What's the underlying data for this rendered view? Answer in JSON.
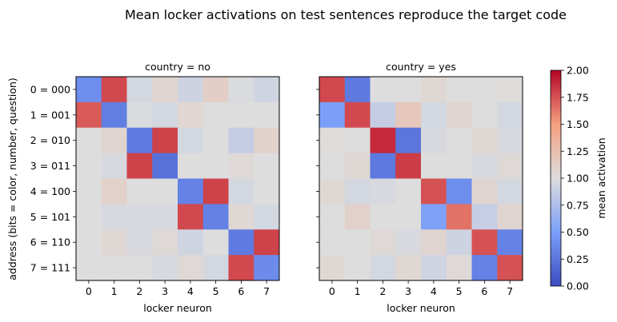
{
  "title": "Mean locker activations on test sentences reproduce the target code",
  "chart_data": {
    "type": "heatmap",
    "colormap": "coolwarm",
    "vmin": 0,
    "vmax": 2,
    "colorbar_label": "mean activation",
    "colorbar_ticks": [
      "0.00",
      "0.25",
      "0.50",
      "0.75",
      "1.00",
      "1.25",
      "1.50",
      "1.75",
      "2.00"
    ],
    "xlabel": "locker neuron",
    "ylabel": "address  (bits = color, number, question)",
    "x_ticks": [
      "0",
      "1",
      "2",
      "3",
      "4",
      "5",
      "6",
      "7"
    ],
    "y_ticks": [
      "0 = 000",
      "1 = 001",
      "2 = 010",
      "3 = 011",
      "4 = 100",
      "5 = 101",
      "6 = 110",
      "7 = 111"
    ],
    "panels": [
      {
        "title": "country = no",
        "values": [
          [
            0.4,
            1.78,
            0.95,
            1.07,
            0.92,
            1.12,
            0.98,
            0.93
          ],
          [
            1.72,
            0.3,
            0.98,
            0.95,
            1.06,
            1.0,
            1.0,
            1.0
          ],
          [
            1.0,
            1.07,
            0.28,
            1.8,
            0.95,
            1.0,
            0.87,
            1.09
          ],
          [
            1.0,
            0.97,
            1.8,
            0.22,
            1.0,
            1.0,
            1.03,
            1.0
          ],
          [
            1.0,
            1.1,
            1.0,
            1.0,
            0.33,
            1.8,
            0.95,
            1.0
          ],
          [
            1.0,
            0.97,
            0.97,
            0.97,
            1.78,
            0.32,
            1.05,
            0.95
          ],
          [
            1.0,
            1.05,
            0.97,
            1.03,
            0.93,
            1.0,
            0.28,
            1.8
          ],
          [
            1.0,
            1.0,
            1.0,
            0.97,
            1.03,
            0.95,
            1.78,
            0.38
          ]
        ]
      },
      {
        "title": "country = yes",
        "values": [
          [
            1.78,
            0.27,
            1.0,
            1.0,
            1.05,
            1.0,
            1.0,
            1.02
          ],
          [
            0.5,
            1.78,
            0.87,
            1.18,
            0.95,
            1.07,
            1.0,
            0.95
          ],
          [
            1.02,
            1.0,
            1.88,
            0.25,
            0.97,
            1.0,
            1.05,
            0.97
          ],
          [
            1.0,
            1.05,
            0.27,
            1.82,
            1.0,
            1.0,
            0.97,
            1.03
          ],
          [
            1.05,
            0.95,
            0.97,
            1.0,
            1.75,
            0.4,
            1.07,
            0.95
          ],
          [
            1.0,
            1.1,
            1.0,
            1.0,
            0.52,
            1.65,
            0.88,
            1.07
          ],
          [
            1.0,
            1.0,
            1.03,
            0.97,
            1.07,
            0.92,
            1.75,
            0.33
          ],
          [
            1.05,
            1.0,
            0.95,
            1.05,
            0.93,
            1.03,
            0.33,
            1.75
          ]
        ]
      }
    ]
  }
}
